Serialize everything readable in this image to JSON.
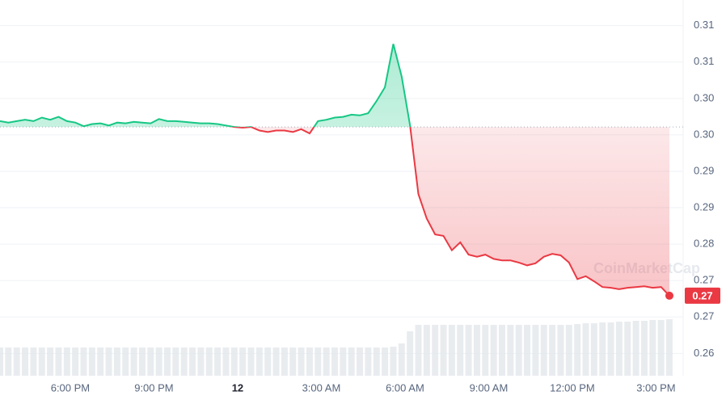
{
  "chart_data": {
    "type": "line",
    "watermark": "CoinMarketCap",
    "reference": 0.2962,
    "up_color": "#16c784",
    "down_color": "#ea3943",
    "xlim": [
      0,
      80
    ],
    "ylim": [
      0.2617,
      0.3138
    ],
    "xticks": [
      {
        "value": 8.4,
        "label": "6:00 PM"
      },
      {
        "value": 18.4,
        "label": "9:00 PM"
      },
      {
        "value": 28.4,
        "label": "12"
      },
      {
        "value": 38.4,
        "label": "3:00 AM"
      },
      {
        "value": 48.4,
        "label": "6:00 AM"
      },
      {
        "value": 58.4,
        "label": "9:00 AM"
      },
      {
        "value": 68.4,
        "label": "12:00 PM"
      },
      {
        "value": 78.4,
        "label": "3:00 PM"
      }
    ],
    "yticks": [
      {
        "value": 0.31025,
        "label": "0.31"
      },
      {
        "value": 0.3052,
        "label": "0.31"
      },
      {
        "value": 0.30015,
        "label": "0.30"
      },
      {
        "value": 0.2951,
        "label": "0.30"
      },
      {
        "value": 0.29005,
        "label": "0.29"
      },
      {
        "value": 0.285,
        "label": "0.29"
      },
      {
        "value": 0.27995,
        "label": "0.28"
      },
      {
        "value": 0.2749,
        "label": "0.27"
      },
      {
        "value": 0.26985,
        "label": "0.27"
      },
      {
        "value": 0.2648,
        "label": "0.26"
      }
    ],
    "grid": true,
    "series": [
      {
        "name": "Price",
        "values": [
          0.297,
          0.2968,
          0.297,
          0.2972,
          0.297,
          0.2975,
          0.2972,
          0.2976,
          0.297,
          0.2968,
          0.2963,
          0.2966,
          0.2967,
          0.2964,
          0.2968,
          0.2967,
          0.2969,
          0.2968,
          0.2967,
          0.2973,
          0.297,
          0.297,
          0.2969,
          0.2968,
          0.2967,
          0.2967,
          0.2966,
          0.2964,
          0.2962,
          0.2961,
          0.2962,
          0.2957,
          0.2955,
          0.2957,
          0.2957,
          0.2955,
          0.2959,
          0.2953,
          0.297,
          0.2972,
          0.2975,
          0.2976,
          0.2979,
          0.2978,
          0.2981,
          0.2998,
          0.3017,
          0.3077,
          0.3032,
          0.2964,
          0.2869,
          0.2835,
          0.2813,
          0.2811,
          0.2791,
          0.2802,
          0.2785,
          0.2782,
          0.2785,
          0.2779,
          0.2777,
          0.2777,
          0.2774,
          0.277,
          0.2773,
          0.2782,
          0.2786,
          0.2784,
          0.2774,
          0.2751,
          0.2755,
          0.2748,
          0.274,
          0.2739,
          0.2737,
          0.2739,
          0.274,
          0.2741,
          0.2739,
          0.274,
          0.2728
        ]
      }
    ],
    "price_badge": {
      "value": 0.2728,
      "label": "0.27"
    },
    "volume": [
      35,
      35,
      35,
      35,
      35,
      35,
      35,
      35,
      35,
      35,
      35,
      35,
      35,
      35,
      35,
      35,
      35,
      35,
      35,
      35,
      35,
      35,
      35,
      35,
      35,
      35,
      35,
      35,
      35,
      35,
      35,
      35,
      35,
      35,
      35,
      35,
      35,
      35,
      35,
      35,
      35,
      35,
      35,
      35,
      35,
      35,
      35,
      36,
      40,
      55,
      63,
      63,
      63,
      63,
      63,
      63,
      63,
      63,
      63,
      63,
      63,
      63,
      63,
      63,
      63,
      63,
      63,
      63,
      63,
      64,
      65,
      65,
      66,
      66,
      67,
      67,
      68,
      68,
      69,
      69,
      70
    ]
  }
}
